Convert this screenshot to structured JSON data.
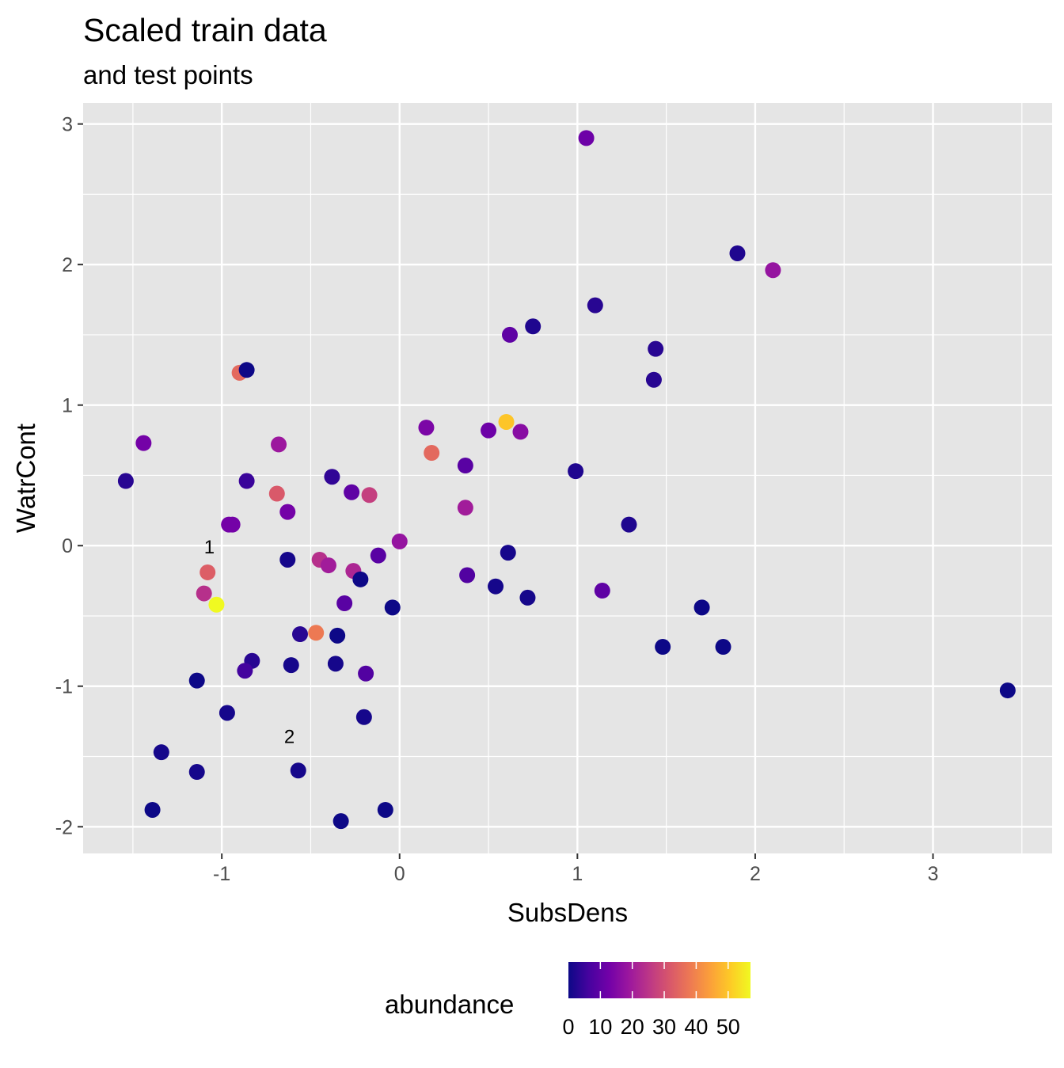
{
  "chart_data": {
    "type": "scatter",
    "title": "Scaled train data",
    "subtitle": "and test points",
    "xlabel": "SubsDens",
    "ylabel": "WatrCont",
    "xlim": [
      -1.78,
      3.67
    ],
    "ylim": [
      -2.19,
      3.15
    ],
    "xticks": [
      -1,
      0,
      1,
      2,
      3
    ],
    "yticks": [
      -2,
      -1,
      0,
      1,
      2,
      3
    ],
    "grid": true,
    "legend": {
      "title": "abundance",
      "position": "bottom",
      "type": "colorbar",
      "range": [
        0,
        57
      ],
      "ticks": [
        0,
        10,
        20,
        30,
        40,
        50
      ],
      "palette": [
        "#0d0887",
        "#46039f",
        "#7201a8",
        "#9c179e",
        "#bd3786",
        "#d8576b",
        "#ed7953",
        "#fb9f3a",
        "#fdca26",
        "#f0f921"
      ]
    },
    "points": [
      [
        1.05,
        2.9,
        12
      ],
      [
        1.9,
        2.08,
        2
      ],
      [
        2.1,
        1.96,
        18
      ],
      [
        1.1,
        1.71,
        3
      ],
      [
        0.75,
        1.56,
        2
      ],
      [
        0.62,
        1.5,
        10
      ],
      [
        1.44,
        1.4,
        3
      ],
      [
        1.43,
        1.18,
        3
      ],
      [
        -0.9,
        1.23,
        35
      ],
      [
        -0.86,
        1.25,
        0
      ],
      [
        0.15,
        0.84,
        14
      ],
      [
        0.5,
        0.82,
        12
      ],
      [
        0.6,
        0.88,
        50
      ],
      [
        0.68,
        0.81,
        16
      ],
      [
        -1.44,
        0.73,
        13
      ],
      [
        -0.68,
        0.72,
        19
      ],
      [
        0.18,
        0.66,
        35
      ],
      [
        -1.54,
        0.46,
        3
      ],
      [
        -0.86,
        0.46,
        5
      ],
      [
        -0.38,
        0.49,
        4
      ],
      [
        0.99,
        0.53,
        2
      ],
      [
        0.37,
        0.57,
        9
      ],
      [
        -0.69,
        0.37,
        32
      ],
      [
        -0.27,
        0.38,
        10
      ],
      [
        -0.17,
        0.36,
        27
      ],
      [
        -0.63,
        0.24,
        13
      ],
      [
        0.37,
        0.27,
        20
      ],
      [
        -0.96,
        0.15,
        13
      ],
      [
        -0.94,
        0.15,
        13
      ],
      [
        1.29,
        0.15,
        2
      ],
      [
        0.0,
        0.03,
        18
      ],
      [
        0.61,
        -0.05,
        1
      ],
      [
        -0.63,
        -0.1,
        1
      ],
      [
        -0.12,
        -0.07,
        9
      ],
      [
        -0.45,
        -0.1,
        24
      ],
      [
        -0.4,
        -0.14,
        20
      ],
      [
        -0.26,
        -0.18,
        22
      ],
      [
        -0.22,
        -0.24,
        0
      ],
      [
        -1.08,
        -0.19,
        33
      ],
      [
        0.38,
        -0.21,
        8
      ],
      [
        0.54,
        -0.29,
        1
      ],
      [
        -1.1,
        -0.34,
        24
      ],
      [
        1.14,
        -0.32,
        10
      ],
      [
        0.72,
        -0.37,
        1
      ],
      [
        -1.03,
        -0.42,
        57
      ],
      [
        -0.31,
        -0.41,
        9
      ],
      [
        -0.04,
        -0.44,
        0
      ],
      [
        1.7,
        -0.44,
        0
      ],
      [
        -0.56,
        -0.63,
        3
      ],
      [
        -0.47,
        -0.62,
        38
      ],
      [
        -0.35,
        -0.64,
        0
      ],
      [
        1.48,
        -0.72,
        0
      ],
      [
        1.82,
        -0.72,
        0
      ],
      [
        -0.83,
        -0.82,
        3
      ],
      [
        -0.87,
        -0.89,
        6
      ],
      [
        -0.61,
        -0.85,
        1
      ],
      [
        -0.36,
        -0.84,
        1
      ],
      [
        -0.19,
        -0.91,
        8
      ],
      [
        -1.14,
        -0.96,
        0
      ],
      [
        3.42,
        -1.03,
        0
      ],
      [
        -0.97,
        -1.19,
        1
      ],
      [
        -0.2,
        -1.22,
        1
      ],
      [
        -1.34,
        -1.47,
        1
      ],
      [
        -1.14,
        -1.61,
        1
      ],
      [
        -0.57,
        -1.6,
        1
      ],
      [
        -1.39,
        -1.88,
        0
      ],
      [
        -0.08,
        -1.88,
        0
      ],
      [
        -0.33,
        -1.96,
        0
      ]
    ],
    "annotations": [
      {
        "label": "1",
        "x": -1.07,
        "y": -0.01
      },
      {
        "label": "2",
        "x": -0.62,
        "y": -1.36
      }
    ]
  }
}
